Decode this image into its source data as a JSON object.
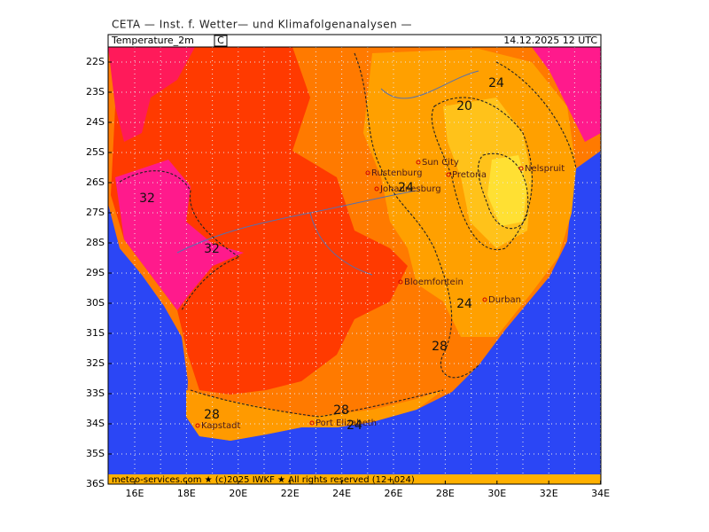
{
  "header": {
    "title": "CETA — Inst. f. Wetter— und Klimafolgenanalysen —"
  },
  "panel": {
    "variable": "Temperature_2m",
    "unit": "C",
    "datetime": "14.12.2025 12 UTC"
  },
  "lat_labels": [
    "22S",
    "23S",
    "24S",
    "25S",
    "26S",
    "27S",
    "28S",
    "29S",
    "30S",
    "31S",
    "32S",
    "33S",
    "34S",
    "35S",
    "36S"
  ],
  "lon_labels": [
    "16E",
    "18E",
    "20E",
    "22E",
    "24E",
    "26E",
    "28E",
    "30E",
    "32E",
    "34E"
  ],
  "cities": [
    "Sun City",
    "Rustenburg",
    "Pretoria",
    "Nelspruit",
    "Johannesburg",
    "Bloemfontein",
    "Durban",
    "Kapstadt",
    "Port Elizabeth"
  ],
  "contour_labels": [
    "24",
    "20",
    "24",
    "32",
    "32",
    "24",
    "28",
    "28",
    "28",
    "24"
  ],
  "footer": "meteo-services.com ★ (c)2025 IWKF ★ All rights reserved (12+024)"
}
